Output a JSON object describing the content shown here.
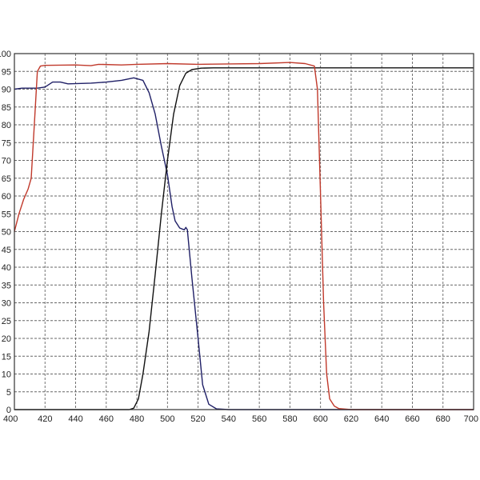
{
  "chart_data": {
    "type": "line",
    "title": "",
    "xlabel": "",
    "ylabel": "",
    "xlim": [
      400,
      700
    ],
    "ylim": [
      0,
      100
    ],
    "x_ticks": [
      "400",
      "420",
      "440",
      "460",
      "480",
      "500",
      "520",
      "540",
      "560",
      "580",
      "600",
      "620",
      "640",
      "660",
      "680",
      "700"
    ],
    "y_ticks": [
      "0",
      "5",
      "10",
      "15",
      "20",
      "25",
      "30",
      "35",
      "40",
      "45",
      "50",
      "55",
      "60",
      "65",
      "70",
      "75",
      "80",
      "85",
      "90",
      "95",
      "100"
    ],
    "grid": true,
    "legend": "none",
    "series": [
      {
        "color": "#1f1f66",
        "points": [
          [
            400,
            90
          ],
          [
            405,
            90.3
          ],
          [
            410,
            90.3
          ],
          [
            415,
            90.3
          ],
          [
            420,
            90.6
          ],
          [
            425,
            92
          ],
          [
            430,
            92
          ],
          [
            435,
            91.5
          ],
          [
            450,
            91.7
          ],
          [
            460,
            92
          ],
          [
            470,
            92.5
          ],
          [
            478,
            93.2
          ],
          [
            484,
            92.5
          ],
          [
            488,
            89
          ],
          [
            492,
            83
          ],
          [
            496,
            74
          ],
          [
            500,
            66
          ],
          [
            503,
            57
          ],
          [
            505,
            53
          ],
          [
            508,
            51
          ],
          [
            511,
            50.5
          ],
          [
            512,
            51.2
          ],
          [
            513,
            50.5
          ],
          [
            516,
            37
          ],
          [
            520,
            20
          ],
          [
            523,
            7
          ],
          [
            527,
            1.5
          ],
          [
            532,
            0.2
          ],
          [
            540,
            0
          ],
          [
            700,
            0
          ]
        ]
      },
      {
        "color": "#111111",
        "points": [
          [
            400,
            0
          ],
          [
            475,
            0
          ],
          [
            478,
            0.4
          ],
          [
            481,
            3
          ],
          [
            484,
            10
          ],
          [
            488,
            22
          ],
          [
            492,
            38
          ],
          [
            496,
            55
          ],
          [
            500,
            70
          ],
          [
            504,
            83
          ],
          [
            508,
            91
          ],
          [
            512,
            94.5
          ],
          [
            516,
            95.5
          ],
          [
            522,
            95.9
          ],
          [
            530,
            96
          ],
          [
            600,
            96
          ],
          [
            700,
            96
          ]
        ]
      },
      {
        "color": "#c0392b",
        "points": [
          [
            400,
            50
          ],
          [
            403,
            55
          ],
          [
            406,
            59
          ],
          [
            409,
            62
          ],
          [
            411,
            65
          ],
          [
            413,
            80
          ],
          [
            415,
            95
          ],
          [
            417,
            96.5
          ],
          [
            420,
            96.7
          ],
          [
            440,
            96.8
          ],
          [
            450,
            96.6
          ],
          [
            455,
            97
          ],
          [
            470,
            96.8
          ],
          [
            480,
            97
          ],
          [
            500,
            97.2
          ],
          [
            520,
            97
          ],
          [
            540,
            97.1
          ],
          [
            560,
            97.2
          ],
          [
            580,
            97.5
          ],
          [
            590,
            97.2
          ],
          [
            596,
            96.5
          ],
          [
            598,
            90
          ],
          [
            600,
            60
          ],
          [
            602,
            30
          ],
          [
            604,
            10
          ],
          [
            606,
            3
          ],
          [
            609,
            1
          ],
          [
            612,
            0.3
          ],
          [
            620,
            0
          ],
          [
            700,
            0
          ]
        ]
      }
    ]
  },
  "colors": {
    "frame": "#333333",
    "grid": "#666666",
    "tick_text": "#222222"
  }
}
